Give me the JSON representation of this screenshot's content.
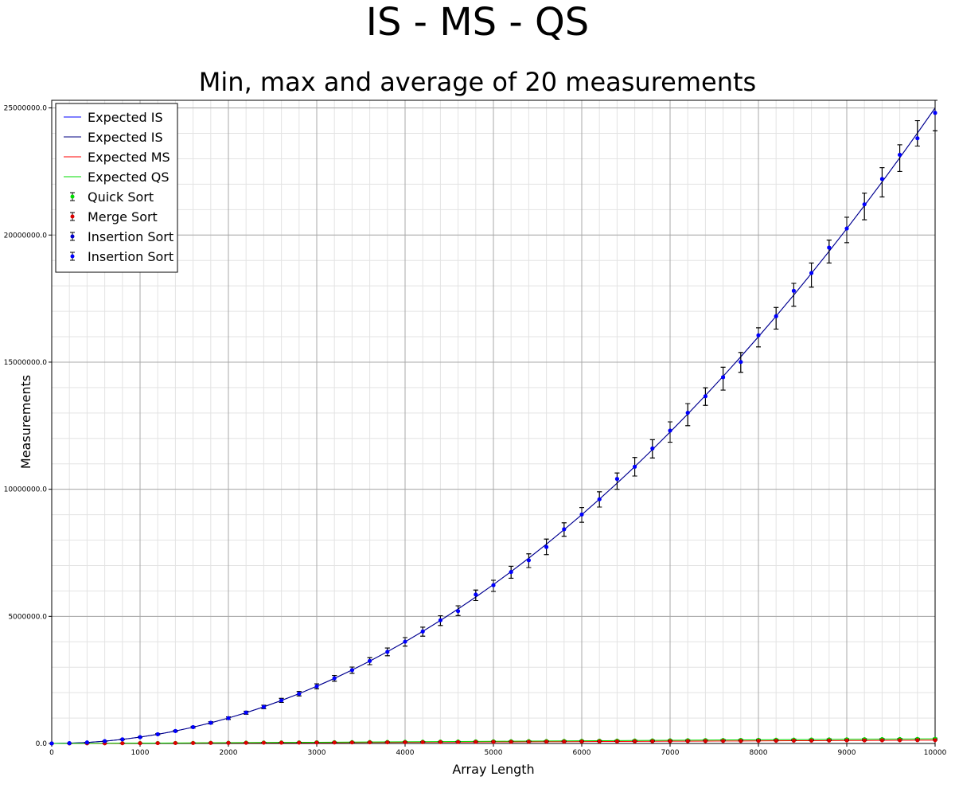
{
  "chart_data": {
    "type": "line",
    "title": "IS - MS - QS",
    "subtitle": "Min, max and average of 20 measurements",
    "xlabel": "Array Length",
    "ylabel": "Measurements",
    "xlim": [
      0,
      10000
    ],
    "ylim": [
      0,
      25300000
    ],
    "x_ticks": [
      0,
      1000,
      2000,
      3000,
      4000,
      5000,
      6000,
      7000,
      8000,
      9000,
      10000
    ],
    "x_tick_labels": [
      "0",
      "1000",
      "2000",
      "3000",
      "4000",
      "5000",
      "6000",
      "7000",
      "8000",
      "9000",
      "10000"
    ],
    "y_ticks": [
      0,
      5000000,
      10000000,
      15000000,
      20000000,
      25000000
    ],
    "y_tick_labels": [
      "0.0",
      "5000000.0",
      "10000000.0",
      "15000000.0",
      "20000000.0",
      "25000000.0"
    ],
    "grid": true,
    "legend_position": "top-left",
    "x": [
      0,
      200,
      400,
      600,
      800,
      1000,
      1200,
      1400,
      1600,
      1800,
      2000,
      2200,
      2400,
      2600,
      2800,
      3000,
      3200,
      3400,
      3600,
      3800,
      4000,
      4200,
      4400,
      4600,
      4800,
      5000,
      5200,
      5400,
      5600,
      5800,
      6000,
      6200,
      6400,
      6600,
      6800,
      7000,
      7200,
      7400,
      7600,
      7800,
      8000,
      8200,
      8400,
      8600,
      8800,
      9000,
      9200,
      9400,
      9600,
      9800,
      10000
    ],
    "lines": [
      {
        "name": "Expected IS",
        "color": "#0000ff",
        "values": [
          0,
          10000,
          40000,
          90000,
          160000,
          250000,
          360000,
          490000,
          640000,
          810000,
          1000000,
          1210000,
          1440000,
          1690000,
          1960000,
          2250000,
          2560000,
          2890000,
          3240000,
          3610000,
          4000000,
          4410000,
          4840000,
          5290000,
          5760000,
          6250000,
          6760000,
          7290000,
          7840000,
          8410000,
          9000000,
          9610000,
          10240000,
          10890000,
          11560000,
          12250000,
          12960000,
          13690000,
          14440000,
          15210000,
          16000000,
          16810000,
          17640000,
          18490000,
          19360000,
          20250000,
          21160000,
          22090000,
          23040000,
          24010000,
          25000000
        ]
      },
      {
        "name": "Expected IS",
        "color": "#000080",
        "values": [
          0,
          10000,
          40000,
          90000,
          160000,
          250000,
          360000,
          490000,
          640000,
          810000,
          1000000,
          1210000,
          1440000,
          1690000,
          1960000,
          2250000,
          2560000,
          2890000,
          3240000,
          3610000,
          4000000,
          4410000,
          4840000,
          5290000,
          5760000,
          6250000,
          6760000,
          7290000,
          7840000,
          8410000,
          9000000,
          9610000,
          10240000,
          10890000,
          11560000,
          12250000,
          12960000,
          13690000,
          14440000,
          15210000,
          16000000,
          16810000,
          17640000,
          18490000,
          19360000,
          20250000,
          21160000,
          22090000,
          23040000,
          24010000,
          25000000
        ]
      },
      {
        "name": "Expected MS",
        "color": "#ff0000",
        "values": [
          0,
          1529,
          3458,
          5538,
          7715,
          9966,
          12274,
          14630,
          17027,
          19459,
          21932,
          24415,
          26920,
          29444,
          31996,
          34567,
          37150,
          39750,
          42363,
          44993,
          47645,
          50296,
          52955,
          55629,
          58320,
          61034,
          63731,
          66442,
          69166,
          71896,
          74604,
          77346,
          80085,
          82830,
          85577,
          88333,
          91093,
          93861,
          96633,
          99412,
          102196,
          104985,
          107780,
          110579,
          113384,
          116192,
          119005,
          121823,
          124644,
          127470,
          130300
        ]
      },
      {
        "name": "Expected QS",
        "color": "#00dd00",
        "values": [
          0,
          2141,
          4841,
          7753,
          10801,
          13952,
          17184,
          20482,
          23838,
          27243,
          30705,
          34181,
          37688,
          41222,
          44794,
          48394,
          52010,
          55650,
          59308,
          62990,
          66703,
          70414,
          74137,
          77881,
          81648,
          85448,
          89223,
          93019,
          96832,
          100654,
          104446,
          108284,
          112119,
          115962,
          119808,
          123666,
          127530,
          131405,
          135286,
          139177,
          143074,
          146979,
          150892,
          154811,
          158738,
          162669,
          166607,
          170552,
          174502,
          178458,
          182420
        ]
      }
    ],
    "series": [
      {
        "name": "Quick Sort",
        "color": "#00dd00",
        "marker": "dot-errorbar",
        "mean": [
          0,
          2141,
          4841,
          7753,
          10801,
          13952,
          17184,
          20482,
          23838,
          27243,
          30705,
          34181,
          37688,
          41222,
          44794,
          48394,
          52010,
          55650,
          59308,
          62990,
          66703,
          70414,
          74137,
          77881,
          81648,
          85448,
          89223,
          93019,
          96832,
          100654,
          104446,
          108284,
          112119,
          115962,
          119808,
          123666,
          127530,
          131405,
          135286,
          139177,
          143074,
          146979,
          150892,
          154811,
          158738,
          162669,
          166607,
          170552,
          174502,
          178458,
          182420
        ],
        "min": [
          0,
          1650,
          4100,
          6700,
          9300,
          12000,
          14800,
          17700,
          20700,
          23700,
          26700,
          29800,
          32900,
          36100,
          39300,
          42500,
          45700,
          49000,
          52300,
          55600,
          58900,
          62300,
          65700,
          69100,
          72500,
          75900,
          79400,
          82800,
          86300,
          89800,
          93300,
          96800,
          100300,
          103800,
          107400,
          110900,
          114500,
          118100,
          121700,
          125300,
          128900,
          132500,
          136100,
          139800,
          143400,
          147100,
          150800,
          154500,
          158200,
          161900,
          165600
        ],
        "max": [
          0,
          2700,
          5800,
          9000,
          12400,
          15900,
          19600,
          23300,
          27000,
          30800,
          34700,
          38600,
          42600,
          46600,
          50700,
          54800,
          58900,
          63100,
          67300,
          71500,
          75800,
          80100,
          84400,
          88700,
          93100,
          97500,
          101900,
          106300,
          110800,
          115200,
          119700,
          124200,
          128700,
          133300,
          137800,
          142400,
          147000,
          151600,
          156200,
          160800,
          165500,
          170100,
          174800,
          179500,
          184200,
          188900,
          193600,
          198300,
          203100,
          207800,
          212600
        ]
      },
      {
        "name": "Merge Sort",
        "color": "#dd0000",
        "marker": "dot-errorbar",
        "mean": [
          0,
          1529,
          3458,
          5538,
          7715,
          9966,
          12274,
          14630,
          17027,
          19459,
          21932,
          24415,
          26920,
          29444,
          31996,
          34567,
          37150,
          39750,
          42363,
          44993,
          47645,
          50296,
          52955,
          55629,
          58320,
          61034,
          63731,
          66442,
          69166,
          71896,
          74604,
          77346,
          80085,
          82830,
          85577,
          88333,
          91093,
          93861,
          96633,
          99412,
          102196,
          104985,
          107780,
          110579,
          113384,
          116192,
          119005,
          121823,
          124644,
          127470,
          130300
        ],
        "min": [
          0,
          1450,
          3300,
          5350,
          7500,
          9700,
          11950,
          14250,
          16600,
          19000,
          21400,
          23850,
          26300,
          28800,
          31300,
          33850,
          36400,
          38950,
          41550,
          44150,
          46750,
          49400,
          52050,
          54700,
          57350,
          60000,
          62700,
          65400,
          68100,
          70800,
          73550,
          76250,
          79000,
          81750,
          84500,
          87250,
          90050,
          92800,
          95600,
          98400,
          101200,
          104000,
          106800,
          109600,
          112400,
          115250,
          118100,
          120900,
          123750,
          126600,
          129450
        ],
        "max": [
          0,
          1600,
          3600,
          5700,
          7900,
          10200,
          12550,
          14950,
          17400,
          19850,
          22350,
          24850,
          27400,
          29950,
          32550,
          35150,
          37750,
          40400,
          43050,
          45700,
          48400,
          51100,
          53800,
          56550,
          59250,
          62000,
          64750,
          67500,
          70250,
          73050,
          75850,
          78650,
          81450,
          84250,
          87100,
          89900,
          92750,
          95600,
          98450,
          101300,
          104150,
          107050,
          109900,
          112800,
          115700,
          118600,
          121500,
          124400,
          127300,
          130200,
          133150
        ]
      },
      {
        "name": "Insertion Sort",
        "color": "#0000cc",
        "marker": "dot-errorbar",
        "mean": [
          0,
          10200,
          40500,
          89000,
          162000,
          248000,
          362000,
          488000,
          642000,
          812000,
          995000,
          1212000,
          1438000,
          1695000,
          1958000,
          2248000,
          2565000,
          2885000,
          3245000,
          3605000,
          4005000,
          4405000,
          4845000,
          5205000,
          5855000,
          6225000,
          6745000,
          7205000,
          7725000,
          8425000,
          9005000,
          9605000,
          10405000,
          10885000,
          11605000,
          12305000,
          13005000,
          13655000,
          14405000,
          15005000,
          16055000,
          16805000,
          17805000,
          18505000,
          19505000,
          20255000,
          21205000,
          22205000,
          23155000,
          23805000,
          24805000
        ],
        "min": [
          0,
          8500,
          36000,
          82000,
          150000,
          232000,
          340000,
          462000,
          608000,
          770000,
          945000,
          1150000,
          1370000,
          1615000,
          1870000,
          2150000,
          2450000,
          2760000,
          3100000,
          3450000,
          3830000,
          4220000,
          4640000,
          5030000,
          5620000,
          5980000,
          6500000,
          6920000,
          7430000,
          8150000,
          8700000,
          9300000,
          10000000,
          10520000,
          11230000,
          11850000,
          12500000,
          13300000,
          13900000,
          14600000,
          15600000,
          16300000,
          17200000,
          17950000,
          18900000,
          19700000,
          20600000,
          21500000,
          22500000,
          23500000,
          24100000
        ],
        "max": [
          0,
          12000,
          45000,
          97000,
          175000,
          265000,
          385000,
          515000,
          675000,
          855000,
          1045000,
          1270000,
          1505000,
          1775000,
          2045000,
          2345000,
          2675000,
          3005000,
          3375000,
          3755000,
          4165000,
          4575000,
          5025000,
          5415000,
          6035000,
          6420000,
          6970000,
          7460000,
          8040000,
          8680000,
          9280000,
          9900000,
          10640000,
          11250000,
          11950000,
          12650000,
          13370000,
          13990000,
          14800000,
          15380000,
          16350000,
          17150000,
          18100000,
          18900000,
          19800000,
          20700000,
          21650000,
          22650000,
          23550000,
          24500000,
          25300000
        ]
      },
      {
        "name": "Insertion Sort",
        "color": "#0000ff",
        "marker": "dot-errorbar",
        "mean": [
          0,
          10200,
          40500,
          89000,
          162000,
          248000,
          362000,
          488000,
          642000,
          812000,
          995000,
          1212000,
          1438000,
          1695000,
          1958000,
          2248000,
          2565000,
          2885000,
          3245000,
          3605000,
          4005000,
          4405000,
          4845000,
          5205000,
          5855000,
          6225000,
          6745000,
          7205000,
          7725000,
          8425000,
          9005000,
          9605000,
          10405000,
          10885000,
          11605000,
          12305000,
          13005000,
          13655000,
          14405000,
          15005000,
          16055000,
          16805000,
          17805000,
          18505000,
          19505000,
          20255000,
          21205000,
          22205000,
          23155000,
          23805000,
          24805000
        ],
        "min": [
          0,
          8500,
          36000,
          82000,
          150000,
          232000,
          340000,
          462000,
          608000,
          770000,
          945000,
          1150000,
          1370000,
          1615000,
          1870000,
          2150000,
          2450000,
          2760000,
          3100000,
          3450000,
          3830000,
          4220000,
          4640000,
          5030000,
          5620000,
          5980000,
          6500000,
          6920000,
          7430000,
          8150000,
          8700000,
          9300000,
          10000000,
          10520000,
          11230000,
          11850000,
          12500000,
          13300000,
          13900000,
          14600000,
          15600000,
          16300000,
          17200000,
          17950000,
          18900000,
          19700000,
          20600000,
          21500000,
          22500000,
          23500000,
          24100000
        ],
        "max": [
          0,
          12000,
          45000,
          97000,
          175000,
          265000,
          385000,
          515000,
          675000,
          855000,
          1045000,
          1270000,
          1505000,
          1775000,
          2045000,
          2345000,
          2675000,
          3005000,
          3375000,
          3755000,
          4165000,
          4575000,
          5025000,
          5415000,
          6035000,
          6420000,
          6970000,
          7460000,
          8040000,
          8680000,
          9280000,
          9900000,
          10640000,
          11250000,
          11950000,
          12650000,
          13370000,
          13990000,
          14800000,
          15380000,
          16350000,
          17150000,
          18100000,
          18900000,
          19800000,
          20700000,
          21650000,
          22650000,
          23550000,
          24500000,
          25300000
        ]
      }
    ]
  }
}
